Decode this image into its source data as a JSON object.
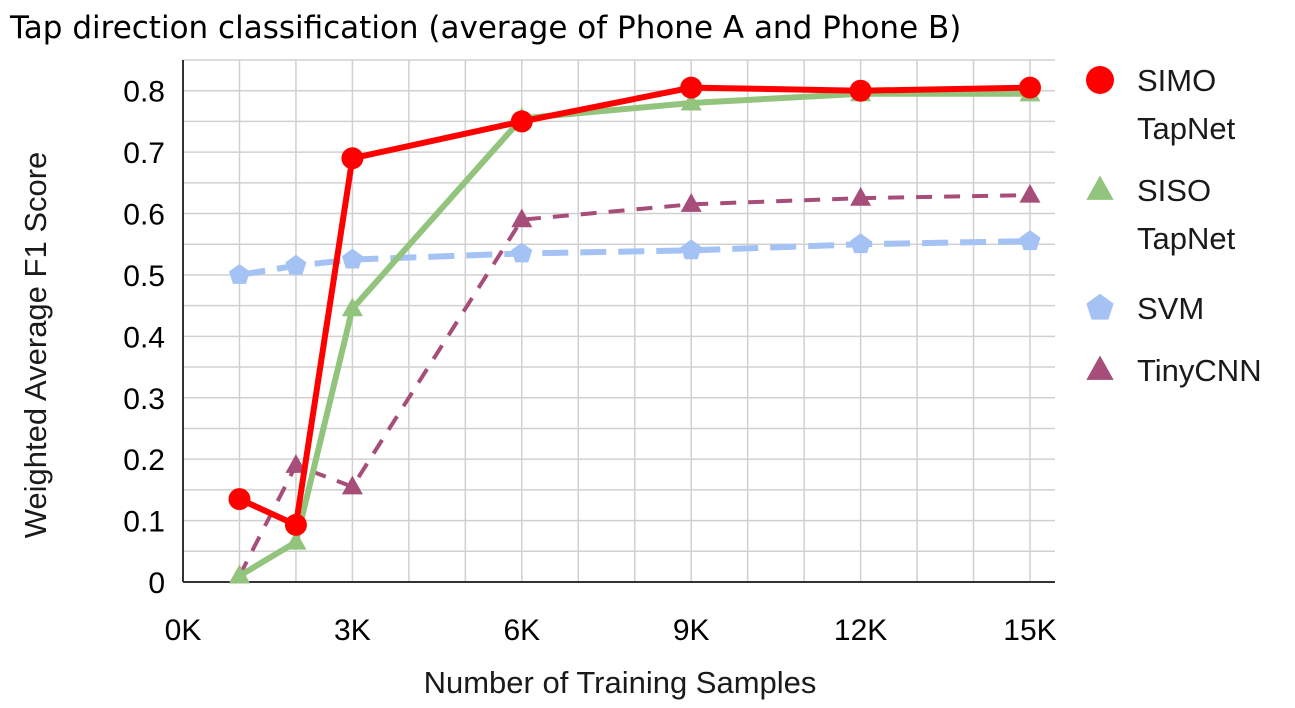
{
  "chart_data": {
    "type": "line",
    "title": "Tap direction classification (average of Phone A and Phone B)",
    "xlabel": "Number of Training Samples",
    "ylabel": "Weighted Average F1 Score",
    "xlim": [
      0,
      15000
    ],
    "ylim": [
      0,
      0.85
    ],
    "x_ticks": [
      0,
      3000,
      6000,
      9000,
      12000,
      15000
    ],
    "x_tick_labels": [
      "0K",
      "3K",
      "6K",
      "9K",
      "12K",
      "15K"
    ],
    "y_ticks": [
      0,
      0.1,
      0.2,
      0.3,
      0.4,
      0.5,
      0.6,
      0.7,
      0.8
    ],
    "y_tick_labels": [
      "0",
      "0.1",
      "0.2",
      "0.3",
      "0.4",
      "0.5",
      "0.6",
      "0.7",
      "0.8"
    ],
    "grid": true,
    "legend_position": "right",
    "series": [
      {
        "name": "SIMO TapNet",
        "legend_lines": [
          "SIMO",
          "TapNet"
        ],
        "color": "#ff0000",
        "marker": "circle",
        "line_style": "solid",
        "x": [
          1000,
          2000,
          3000,
          6000,
          9000,
          12000,
          15000
        ],
        "y": [
          0.135,
          0.093,
          0.69,
          0.75,
          0.805,
          0.8,
          0.805
        ]
      },
      {
        "name": "SISO TapNet",
        "legend_lines": [
          "SISO",
          "TapNet"
        ],
        "color": "#93c47d",
        "marker": "triangle",
        "line_style": "solid",
        "x": [
          1000,
          2000,
          3000,
          6000,
          9000,
          12000,
          15000
        ],
        "y": [
          0.01,
          0.065,
          0.445,
          0.755,
          0.78,
          0.795,
          0.795
        ]
      },
      {
        "name": "SVM",
        "legend_lines": [
          "SVM"
        ],
        "color": "#a4c2f4",
        "marker": "pentagon",
        "line_style": "long-dash",
        "x": [
          1000,
          2000,
          3000,
          6000,
          9000,
          12000,
          15000
        ],
        "y": [
          0.5,
          0.515,
          0.525,
          0.535,
          0.54,
          0.55,
          0.555
        ]
      },
      {
        "name": "TinyCNN",
        "legend_lines": [
          "TinyCNN"
        ],
        "color": "#a64d79",
        "marker": "triangle",
        "line_style": "dash",
        "x": [
          1000,
          2000,
          3000,
          6000,
          9000,
          12000,
          15000
        ],
        "y": [
          0.01,
          0.19,
          0.155,
          0.59,
          0.615,
          0.625,
          0.63
        ]
      }
    ]
  }
}
